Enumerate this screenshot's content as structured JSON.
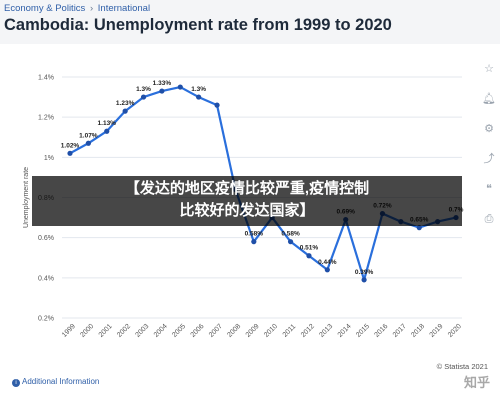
{
  "header": {
    "breadcrumb": [
      "Economy & Politics",
      "International"
    ],
    "breadcrumb_sep": "›",
    "title": "Cambodia: Unemployment rate from 1999 to 2020"
  },
  "banner": {
    "line1": "【发达的地区疫情比较严重,疫情控制",
    "line2": "比较好的发达国家】"
  },
  "footer": {
    "additional_info": "Additional Information",
    "credit": "© Statista 2021",
    "watermark": "知乎"
  },
  "toolbar": {
    "icons": [
      "star-icon",
      "bell-icon",
      "gear-icon",
      "share-icon",
      "quote-icon",
      "print-icon"
    ]
  },
  "colors": {
    "line": "#2a6fdc",
    "point": "#1f4fa8",
    "grid": "#e3e7ee",
    "axis_text": "#555555"
  },
  "chart_data": {
    "type": "line",
    "x": [
      "1999",
      "2000",
      "2001",
      "2002",
      "2003",
      "2004",
      "2005",
      "2006",
      "2007",
      "2008",
      "2009",
      "2010",
      "2011",
      "2012",
      "2013",
      "2014",
      "2015",
      "2016",
      "2017",
      "2018",
      "2019",
      "2020"
    ],
    "values": [
      1.02,
      1.07,
      1.13,
      1.23,
      1.3,
      1.33,
      1.35,
      1.3,
      1.26,
      0.84,
      0.58,
      0.7,
      0.58,
      0.51,
      0.44,
      0.69,
      0.39,
      0.72,
      0.68,
      0.65,
      0.68,
      0.7
    ],
    "data_labels": [
      "1.02%",
      "1.07%",
      "1.13%",
      "1.23%",
      "1.3%",
      "1.33%",
      "",
      "1.3%",
      "",
      "",
      "0.58%",
      "",
      "0.58%",
      "0.51%",
      "0.44%",
      "0.69%",
      "0.39%",
      "0.72%",
      "",
      "0.65%",
      "",
      "0.7%"
    ],
    "ylabel": "Unemployment rate",
    "ylim": [
      0.2,
      1.4
    ],
    "yticks": [
      "0.2%",
      "0.4%",
      "0.6%",
      "0.8%",
      "1%",
      "1.2%",
      "1.4%"
    ],
    "grid": true
  }
}
